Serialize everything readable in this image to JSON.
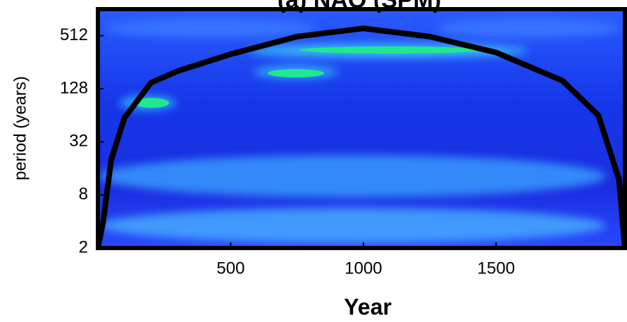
{
  "chart_data": {
    "type": "line",
    "title": "(a) NAO (SPM)",
    "x_label": "Year",
    "y_label": "period (years)",
    "series": [
      {
        "color": "#000000",
        "x": [
          0,
          20,
          50,
          100,
          200,
          300,
          500,
          750,
          1000,
          1250,
          1500,
          1750,
          1885,
          1963,
          1985
        ],
        "values": [
          2,
          4,
          20,
          60,
          150,
          203,
          316,
          500,
          620,
          500,
          330,
          158,
          64,
          12,
          2
        ]
      }
    ],
    "xlim": [
      0,
      1985
    ],
    "xticks": [
      500,
      1000,
      1500
    ],
    "ylim": [
      2,
      1024
    ],
    "yticks": [
      2,
      8,
      32,
      128,
      512
    ],
    "log_y": true
  }
}
